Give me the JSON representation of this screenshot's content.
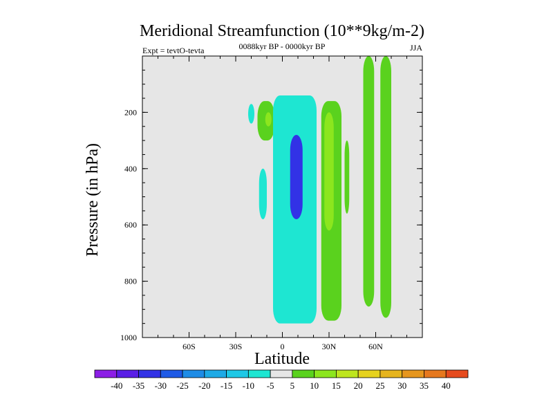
{
  "chart_data": {
    "type": "contour",
    "title": "Meridional Streamfunction (10**9kg/m-2)",
    "subtitle": "0088kyr BP - 0000kyr BP",
    "left_label": "Expt = tevtO-tevta",
    "right_label": "JJA",
    "xlabel": "Latitude",
    "ylabel": "Pressure (in hPa)",
    "x_ticks": [
      "60S",
      "30S",
      "0",
      "30N",
      "60N"
    ],
    "x_tick_values": [
      -60,
      -30,
      0,
      30,
      60
    ],
    "xlim": [
      -90,
      90
    ],
    "y_ticks": [
      "200",
      "400",
      "600",
      "800",
      "1000"
    ],
    "y_tick_values": [
      200,
      400,
      600,
      800,
      1000
    ],
    "ylim": [
      0,
      1000
    ],
    "y_inverted": true,
    "background_color": "#e6e6e6",
    "colorbar": {
      "labels": [
        "-40",
        "-35",
        "-30",
        "-25",
        "-20",
        "-15",
        "-10",
        "-5",
        "5",
        "10",
        "15",
        "20",
        "25",
        "30",
        "35",
        "40"
      ],
      "colors": [
        "#8c1ee6",
        "#5a1ee6",
        "#3232e6",
        "#1e5ae6",
        "#1e8ce6",
        "#1eaae6",
        "#1ec8e6",
        "#1ee6d2",
        "#e6e6e6",
        "#5ad21e",
        "#8ce61e",
        "#bee61e",
        "#e6d21e",
        "#e6b41e",
        "#e6961e",
        "#e6781e",
        "#e64b1e"
      ]
    },
    "features": [
      {
        "type": "filled",
        "level": -10,
        "lat_range": [
          -22,
          -18
        ],
        "p_range": [
          170,
          240
        ]
      },
      {
        "type": "filled",
        "level": 5,
        "lat_range": [
          -16,
          -5
        ],
        "p_range": [
          160,
          300
        ]
      },
      {
        "type": "filled",
        "level": 10,
        "lat_range": [
          -11,
          -7
        ],
        "p_range": [
          200,
          250
        ]
      },
      {
        "type": "filled",
        "level": -10,
        "lat_range": [
          -15,
          -10
        ],
        "p_range": [
          400,
          580
        ]
      },
      {
        "type": "filled",
        "level": -10,
        "lat_range": [
          -6,
          22
        ],
        "p_range": [
          140,
          950
        ]
      },
      {
        "type": "filled",
        "level": -35,
        "lat_range": [
          5,
          13
        ],
        "p_range": [
          280,
          580
        ]
      },
      {
        "type": "filled",
        "level": 5,
        "lat_range": [
          25,
          38
        ],
        "p_range": [
          160,
          940
        ]
      },
      {
        "type": "filled",
        "level": 10,
        "lat_range": [
          27,
          33
        ],
        "p_range": [
          200,
          620
        ]
      },
      {
        "type": "filled",
        "level": 5,
        "lat_range": [
          40,
          43
        ],
        "p_range": [
          300,
          560
        ]
      },
      {
        "type": "filled",
        "level": 5,
        "lat_range": [
          52,
          59
        ],
        "p_range": [
          0,
          890
        ]
      },
      {
        "type": "filled",
        "level": 5,
        "lat_range": [
          63,
          70
        ],
        "p_range": [
          0,
          930
        ]
      }
    ]
  }
}
